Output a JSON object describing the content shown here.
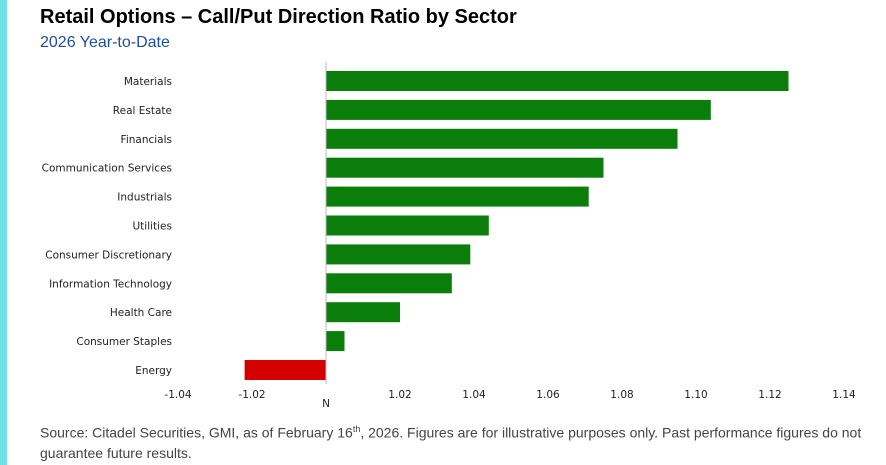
{
  "header": {
    "title": "Retail Options – Call/Put Direction Ratio by Sector",
    "subtitle": "2026 Year-to-Date"
  },
  "footer": {
    "source_before": "Source: Citadel Securities, GMI, as of February 16",
    "source_sup": "th",
    "source_after": ", 2026. Figures are for illustrative purposes only. Past performance figures do not guarantee future results."
  },
  "colors": {
    "accent": "#6fe1e6",
    "positive": "#0a7d0a",
    "negative": "#d40000"
  },
  "chart_data": {
    "type": "bar",
    "orientation": "horizontal",
    "title": "Retail Options – Call/Put Direction Ratio by Sector",
    "subtitle": "2026 Year-to-Date",
    "categories": [
      "Materials",
      "Real Estate",
      "Financials",
      "Communication Services",
      "Industrials",
      "Utilities",
      "Consumer Discretionary",
      "Information Technology",
      "Health Care",
      "Consumer Staples",
      "Energy"
    ],
    "values": [
      1.125,
      1.104,
      1.095,
      1.075,
      1.071,
      1.044,
      1.039,
      1.034,
      1.02,
      1.005,
      -1.022
    ],
    "xlim": [
      -1.04,
      1.14
    ],
    "baseline_label": "N",
    "tick_labels": [
      "-1.04",
      "-1.02",
      "1.02",
      "1.04",
      "1.06",
      "1.08",
      "1.10",
      "1.12",
      "1.14"
    ],
    "grid": false,
    "legend": "none"
  }
}
